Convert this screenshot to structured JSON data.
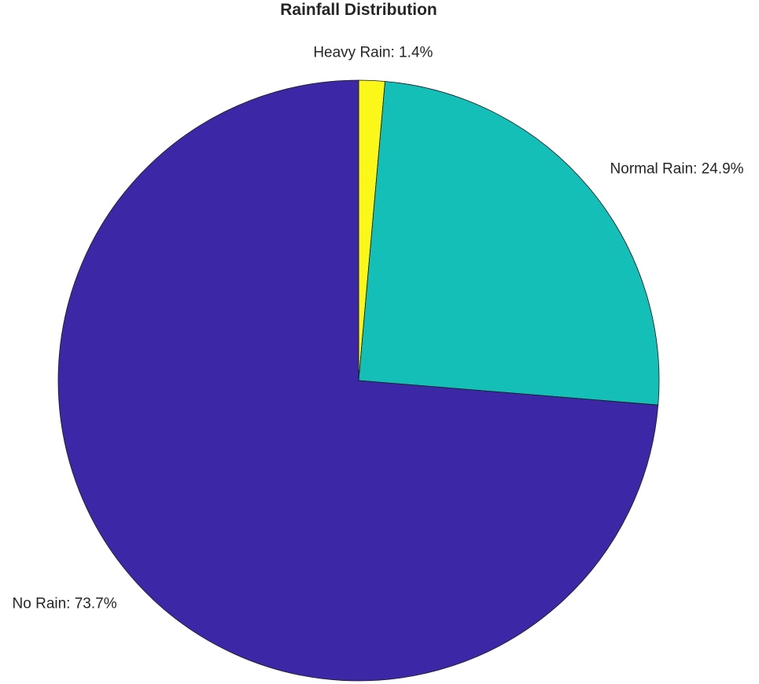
{
  "chart_data": {
    "type": "pie",
    "title": "Rainfall Distribution",
    "slices": [
      {
        "label": "Heavy Rain",
        "value": 1.4,
        "value_text": "1.4%",
        "color": "#FAF719",
        "label_text": "Heavy Rain: 1.4%"
      },
      {
        "label": "Normal Rain",
        "value": 24.9,
        "value_text": "24.9%",
        "color": "#14BFB7",
        "label_text": "Normal Rain: 24.9%"
      },
      {
        "label": "No Rain",
        "value": 73.7,
        "value_text": "73.7%",
        "color": "#3C28A6",
        "label_text": "No Rain: 73.7%"
      }
    ],
    "start_angle": "top",
    "direction": "clockwise",
    "legend": "none",
    "labels_outside": true
  }
}
